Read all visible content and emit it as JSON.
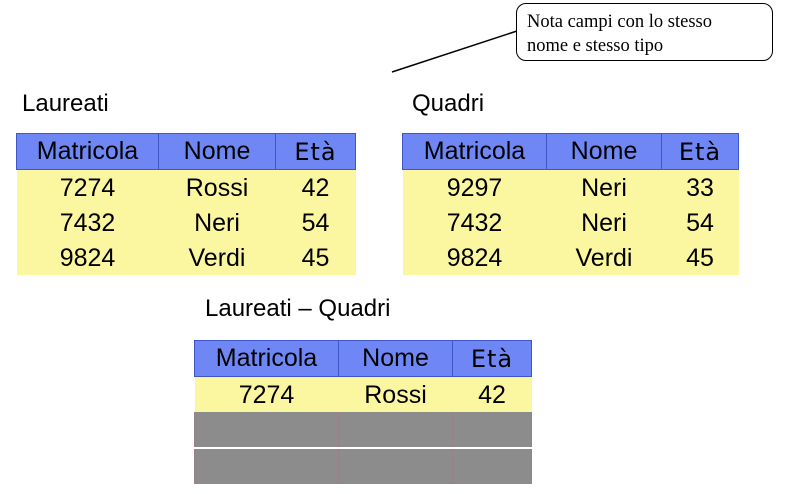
{
  "note": {
    "lines": [
      "Nota campi con lo stesso",
      "nome e stesso tipo"
    ]
  },
  "laureati": {
    "title": "Laureati",
    "headers": [
      "Matricola",
      "Nome",
      "Età"
    ],
    "rows": [
      [
        "7274",
        "Rossi",
        "42"
      ],
      [
        "7432",
        "Neri",
        "54"
      ],
      [
        "9824",
        "Verdi",
        "45"
      ]
    ]
  },
  "quadri": {
    "title": "Quadri",
    "headers": [
      "Matricola",
      "Nome",
      "Età"
    ],
    "rows": [
      [
        "9297",
        "Neri",
        "33"
      ],
      [
        "7432",
        "Neri",
        "54"
      ],
      [
        "9824",
        "Verdi",
        "45"
      ]
    ]
  },
  "difference": {
    "title": "Laureati – Quadri",
    "headers": [
      "Matricola",
      "Nome",
      "Età"
    ],
    "rows": [
      [
        "7274",
        "Rossi",
        "42"
      ]
    ]
  },
  "colors": {
    "header": "#6f87f4",
    "row": "#fbf7a0",
    "masked": "#8c8c8c"
  }
}
